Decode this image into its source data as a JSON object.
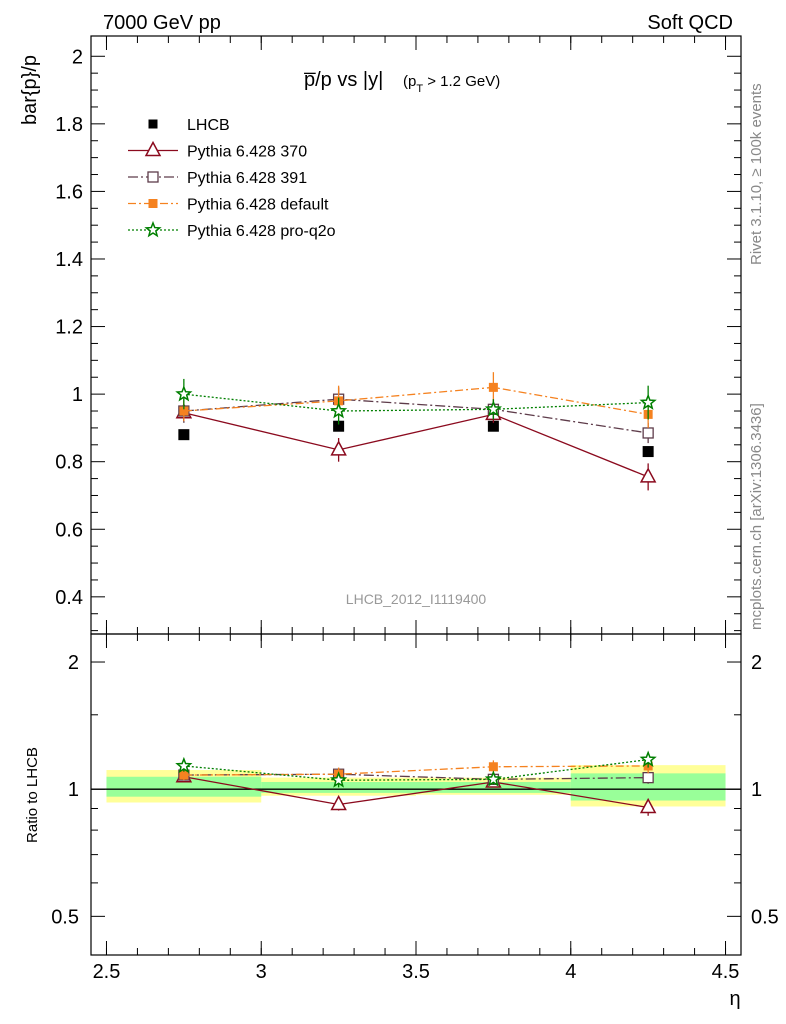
{
  "header": {
    "left": "7000 GeV pp",
    "right": "Soft QCD"
  },
  "side_labels": {
    "rivet": "Rivet 3.1.10, ≥ 100k events",
    "mcplots": "mcplots.cern.ch [arXiv:1306.3436]"
  },
  "watermark": "LHCB_2012_I1119400",
  "plot_title": {
    "main": "p̅/p vs |y|",
    "cut": "(p",
    "cut_sub": "T",
    "cut_rest": " > 1.2 GeV)"
  },
  "chart_data": [
    {
      "type": "line",
      "panel": "main",
      "ylabel": "bar{p}/p",
      "xlim": [
        2.45,
        4.55
      ],
      "ylim": [
        0.29,
        2.06
      ],
      "yticks": [
        "0.4",
        "0.6",
        "0.8",
        "1",
        "1.2",
        "1.4",
        "1.6",
        "1.8",
        "2"
      ],
      "yticks_values": [
        0.4,
        0.6,
        0.8,
        1.0,
        1.2,
        1.4,
        1.6,
        1.8,
        2.0
      ],
      "series": [
        {
          "name": "LHCB",
          "key": "lhcb",
          "color": "#000000",
          "marker": "filled-square",
          "x": [
            2.75,
            3.25,
            3.75,
            4.25
          ],
          "y": [
            0.88,
            0.905,
            0.905,
            0.83
          ],
          "err": [
            0.005,
            0.005,
            0.005,
            0.005
          ]
        },
        {
          "name": "Pythia 6.428 370",
          "key": "p370",
          "color": "#8b0a1e",
          "marker": "open-triangle",
          "x": [
            2.75,
            3.25,
            3.75,
            4.25
          ],
          "y": [
            0.945,
            0.835,
            0.94,
            0.755
          ],
          "err": [
            0.025,
            0.035,
            0.025,
            0.04
          ]
        },
        {
          "name": "Pythia 6.428 391",
          "key": "p391",
          "color": "#5e3c4a",
          "marker": "open-square",
          "x": [
            2.75,
            3.25,
            3.75,
            4.25
          ],
          "y": [
            0.95,
            0.985,
            0.955,
            0.885
          ],
          "err": [
            0.035,
            0.035,
            0.03,
            0.03
          ]
        },
        {
          "name": "Pythia 6.428 default",
          "key": "pdef",
          "color": "#f58220",
          "marker": "filled-square",
          "x": [
            2.75,
            3.25,
            3.75,
            4.25
          ],
          "y": [
            0.95,
            0.98,
            1.02,
            0.94
          ],
          "err": [
            0.03,
            0.045,
            0.045,
            0.04
          ]
        },
        {
          "name": "Pythia 6.428 pro-q2o",
          "key": "pq2o",
          "color": "#007f00",
          "marker": "star",
          "x": [
            2.75,
            3.25,
            3.75,
            4.25
          ],
          "y": [
            1.0,
            0.95,
            0.955,
            0.975
          ],
          "err": [
            0.045,
            0.04,
            0.03,
            0.05
          ]
        }
      ]
    },
    {
      "type": "line",
      "panel": "ratio",
      "ylabel": "Ratio to LHCB",
      "xlabel": "η",
      "xlim": [
        2.45,
        4.55
      ],
      "ylim": [
        0.405,
        2.33
      ],
      "log_scale": true,
      "xticks": [
        "2.5",
        "3",
        "3.5",
        "4",
        "4.5"
      ],
      "xticks_values": [
        2.5,
        3.0,
        3.5,
        4.0,
        4.5
      ],
      "yticks": [
        "0.5",
        "1",
        "2"
      ],
      "yticks_values": [
        0.5,
        1.0,
        2.0
      ],
      "bands": {
        "x_edges": [
          2.5,
          3.0,
          3.5,
          4.0,
          4.5
        ],
        "yellow": [
          [
            0.93,
            1.11
          ],
          [
            0.965,
            1.065
          ],
          [
            0.97,
            1.065
          ],
          [
            0.91,
            1.14
          ]
        ],
        "green": [
          [
            0.96,
            1.07
          ],
          [
            0.98,
            1.04
          ],
          [
            0.98,
            1.04
          ],
          [
            0.94,
            1.09
          ]
        ],
        "yellow_color": "#ffff99",
        "green_color": "#99ff99"
      },
      "series": [
        {
          "name": "Pythia 6.428 370",
          "key": "p370",
          "color": "#8b0a1e",
          "marker": "open-triangle",
          "x": [
            2.75,
            3.25,
            3.75,
            4.25
          ],
          "y": [
            1.07,
            0.92,
            1.04,
            0.905
          ],
          "err": [
            0.025,
            0.03,
            0.025,
            0.04
          ]
        },
        {
          "name": "Pythia 6.428 391",
          "key": "p391",
          "color": "#5e3c4a",
          "marker": "open-square",
          "x": [
            2.75,
            3.25,
            3.75,
            4.25
          ],
          "y": [
            1.08,
            1.085,
            1.055,
            1.065
          ],
          "err": [
            0.03,
            0.03,
            0.03,
            0.035
          ]
        },
        {
          "name": "Pythia 6.428 default",
          "key": "pdef",
          "color": "#f58220",
          "marker": "filled-square",
          "x": [
            2.75,
            3.25,
            3.75,
            4.25
          ],
          "y": [
            1.08,
            1.085,
            1.13,
            1.135
          ],
          "err": [
            0.03,
            0.04,
            0.04,
            0.045
          ]
        },
        {
          "name": "Pythia 6.428 pro-q2o",
          "key": "pq2o",
          "color": "#007f00",
          "marker": "star",
          "x": [
            2.75,
            3.25,
            3.75,
            4.25
          ],
          "y": [
            1.135,
            1.05,
            1.055,
            1.175
          ],
          "err": [
            0.035,
            0.04,
            0.03,
            0.05
          ]
        }
      ]
    }
  ]
}
